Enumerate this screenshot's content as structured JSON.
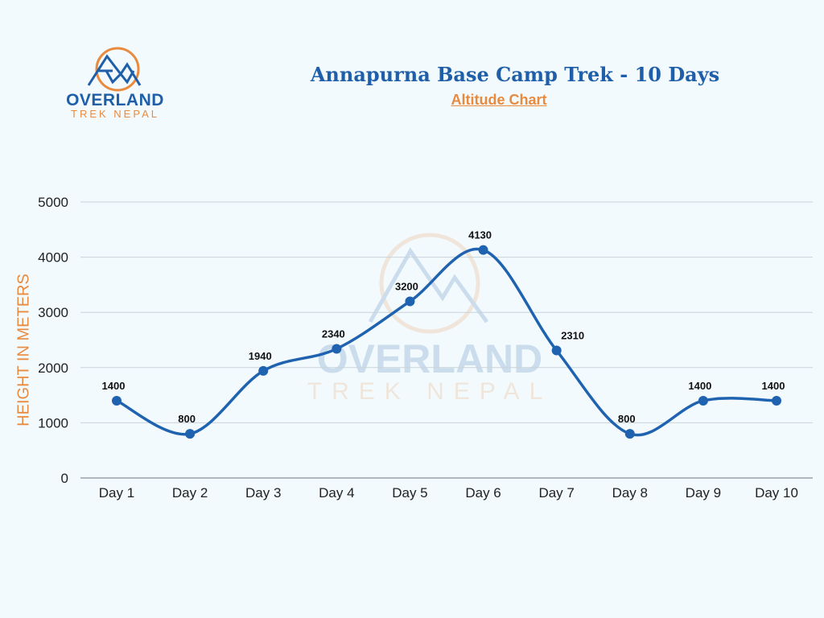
{
  "logo": {
    "line1": "OVERLAND",
    "line2": "TREK NEPAL",
    "icon": "mountain-circle-logo-icon",
    "colors": {
      "blue": "#1f5fa9",
      "orange": "#e98b3f"
    }
  },
  "header": {
    "title": "Annapurna Base Camp Trek - 10 Days",
    "subtitle": "Altitude Chart"
  },
  "watermark": {
    "line1": "OVERLAND",
    "line2": "TREK NEPAL"
  },
  "colors": {
    "background": "#f2fafd",
    "line": "#1f63b0",
    "title": "#1f5fa9",
    "accent": "#e98b3f",
    "grid": "#c9d3d9"
  },
  "chart_data": {
    "type": "line",
    "title": "Annapurna Base Camp Trek - 10 Days",
    "subtitle": "Altitude Chart",
    "xlabel": "",
    "ylabel": "HEIGHT IN METERS",
    "categories": [
      "Day 1",
      "Day 2",
      "Day 3",
      "Day 4",
      "Day 5",
      "Day 6",
      "Day 7",
      "Day 8",
      "Day 9",
      "Day 10"
    ],
    "series": [
      {
        "name": "Altitude (m)",
        "values": [
          1400,
          800,
          1940,
          2340,
          3200,
          4130,
          2310,
          800,
          1400,
          1400
        ]
      }
    ],
    "data_labels": [
      "1400",
      "800",
      "1940",
      "2340",
      "3200",
      "4130",
      "2310",
      "800",
      "1400",
      "1400"
    ],
    "yticks": [
      0,
      1000,
      2000,
      3000,
      4000,
      5000
    ],
    "ytick_labels": [
      "0",
      "1000",
      "2000",
      "3000",
      "4000",
      "5000"
    ],
    "ylim": [
      0,
      5000
    ],
    "grid": true,
    "smooth": true,
    "legend": "none"
  }
}
